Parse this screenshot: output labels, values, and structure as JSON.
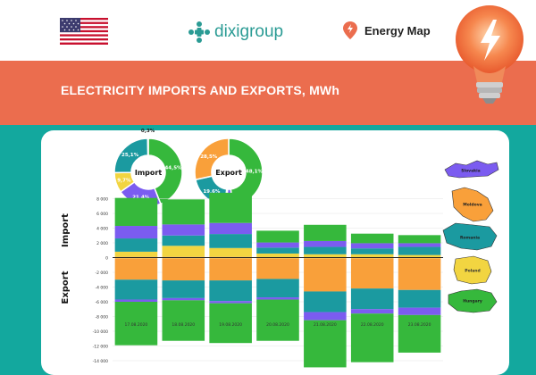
{
  "header": {
    "logo_text": "dixigroup",
    "energy_map_label": "Energy Map"
  },
  "title": "ELECTRICITY IMPORTS AND EXPORTS, MWh",
  "colors": {
    "banner": "#eb6d4e",
    "teal": "#13a89e",
    "slovakia": "#7b5cf0",
    "moldova": "#f9a03a",
    "romania": "#1b9aa0",
    "poland": "#f2d541",
    "hungary": "#36b83c"
  },
  "chart_data": [
    {
      "type": "pie",
      "title": "Import",
      "slices": [
        {
          "label": "44,5%",
          "value": 44.5,
          "color": "#36b83c"
        },
        {
          "label": "21,4%",
          "value": 21.4,
          "color": "#7b5cf0"
        },
        {
          "label": "9,7%",
          "value": 9.7,
          "color": "#f2d541"
        },
        {
          "label": "25,1%",
          "value": 25.1,
          "color": "#1b9aa0"
        },
        {
          "label": "0,3%",
          "value": 0.3,
          "color": "#f9a03a"
        }
      ]
    },
    {
      "type": "pie",
      "title": "Export",
      "slices": [
        {
          "label": "48,1%",
          "value": 48.1,
          "color": "#36b83c"
        },
        {
          "label": "3,0%",
          "value": 3.0,
          "color": "#7b5cf0"
        },
        {
          "label": "0,8%",
          "value": 0.8,
          "color": "#f2d541"
        },
        {
          "label": "19,6%",
          "value": 19.6,
          "color": "#1b9aa0"
        },
        {
          "label": "28,5%",
          "value": 28.5,
          "color": "#f9a03a"
        }
      ]
    },
    {
      "type": "bar",
      "stacked": true,
      "categories": [
        "17.08.2020",
        "18.08.2020",
        "19.08.2020",
        "20.08.2020",
        "21.08.2020",
        "22.08.2020",
        "23.08.2020"
      ],
      "ylabel_top": "Import",
      "ylabel_bottom": "Export",
      "ylim": [
        -14000,
        8000
      ],
      "yticks": [
        8000,
        6000,
        4000,
        2000,
        0,
        -2000,
        -4000,
        -6000,
        -8000,
        -10000,
        -12000,
        -14000
      ],
      "ytick_labels": [
        "8 000",
        "6 000",
        "4 000",
        "2 000",
        "0",
        "-2 000",
        "-4 000",
        "-6 000",
        "-8 000",
        "-10 000",
        "-12 000",
        "-14 000"
      ],
      "import_series": [
        {
          "name": "Moldova",
          "color": "#f9a03a",
          "values": [
            100,
            100,
            100,
            50,
            50,
            50,
            50
          ]
        },
        {
          "name": "Poland",
          "color": "#f2d541",
          "values": [
            700,
            1500,
            1200,
            500,
            400,
            400,
            300
          ]
        },
        {
          "name": "Romania",
          "color": "#1b9aa0",
          "values": [
            1800,
            1400,
            1900,
            800,
            1000,
            800,
            1100
          ]
        },
        {
          "name": "Slovakia",
          "color": "#7b5cf0",
          "values": [
            1700,
            1500,
            1500,
            700,
            800,
            700,
            500
          ]
        },
        {
          "name": "Hungary",
          "color": "#36b83c",
          "values": [
            3800,
            3400,
            4100,
            1600,
            2200,
            1300,
            1100
          ]
        }
      ],
      "export_series": [
        {
          "name": "Poland",
          "color": "#f2d541",
          "values": [
            -100,
            -100,
            -100,
            -100,
            -100,
            -100,
            -100
          ]
        },
        {
          "name": "Moldova",
          "color": "#f9a03a",
          "values": [
            -2900,
            -3000,
            -3000,
            -2800,
            -4500,
            -4100,
            -4300
          ]
        },
        {
          "name": "Romania",
          "color": "#1b9aa0",
          "values": [
            -2700,
            -2400,
            -2800,
            -2500,
            -2800,
            -2800,
            -2400
          ]
        },
        {
          "name": "Slovakia",
          "color": "#7b5cf0",
          "values": [
            -300,
            -300,
            -300,
            -300,
            -1100,
            -600,
            -1000
          ]
        },
        {
          "name": "Hungary",
          "color": "#36b83c",
          "values": [
            -5900,
            -5500,
            -5400,
            -5600,
            -6400,
            -6600,
            -5100
          ]
        }
      ]
    }
  ],
  "map": {
    "regions": [
      {
        "label": "Slovakia",
        "color": "#7b5cf0"
      },
      {
        "label": "Moldova",
        "color": "#f9a03a"
      },
      {
        "label": "Romania",
        "color": "#1b9aa0"
      },
      {
        "label": "Poland",
        "color": "#f2d541"
      },
      {
        "label": "Hungary",
        "color": "#36b83c"
      }
    ]
  }
}
